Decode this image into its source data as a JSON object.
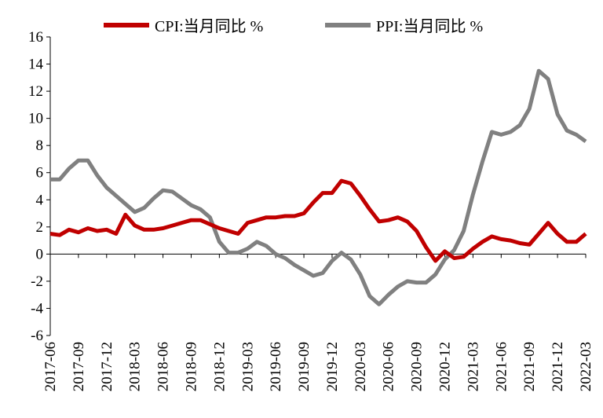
{
  "chart_data": {
    "type": "line",
    "title": "",
    "xlabel": "",
    "ylabel": "",
    "ylim": [
      -6,
      16
    ],
    "yticks": [
      16,
      14,
      12,
      10,
      8,
      6,
      4,
      2,
      0,
      -2,
      -4,
      -6
    ],
    "x": [
      "2017-06",
      "2017-07",
      "2017-08",
      "2017-09",
      "2017-10",
      "2017-11",
      "2017-12",
      "2018-01",
      "2018-02",
      "2018-03",
      "2018-04",
      "2018-05",
      "2018-06",
      "2018-07",
      "2018-08",
      "2018-09",
      "2018-10",
      "2018-11",
      "2018-12",
      "2019-01",
      "2019-02",
      "2019-03",
      "2019-04",
      "2019-05",
      "2019-06",
      "2019-07",
      "2019-08",
      "2019-09",
      "2019-10",
      "2019-11",
      "2019-12",
      "2020-01",
      "2020-02",
      "2020-03",
      "2020-04",
      "2020-05",
      "2020-06",
      "2020-07",
      "2020-08",
      "2020-09",
      "2020-10",
      "2020-11",
      "2020-12",
      "2021-01",
      "2021-02",
      "2021-03",
      "2021-04",
      "2021-05",
      "2021-06",
      "2021-07",
      "2021-08",
      "2021-09",
      "2021-10",
      "2021-11",
      "2021-12",
      "2022-01",
      "2022-02",
      "2022-03"
    ],
    "x_tick_labels": [
      "2017-06",
      "2017-09",
      "2017-12",
      "2018-03",
      "2018-06",
      "2018-09",
      "2018-12",
      "2019-03",
      "2019-06",
      "2019-09",
      "2019-12",
      "2020-03",
      "2020-06",
      "2020-09",
      "2020-12",
      "2021-03",
      "2021-06",
      "2021-09",
      "2021-12",
      "2022-03"
    ],
    "series": [
      {
        "name": "CPI:当月同比 %",
        "color": "#c00000",
        "values": [
          1.5,
          1.4,
          1.8,
          1.6,
          1.9,
          1.7,
          1.8,
          1.5,
          2.9,
          2.1,
          1.8,
          1.8,
          1.9,
          2.1,
          2.3,
          2.5,
          2.5,
          2.2,
          1.9,
          1.7,
          1.5,
          2.3,
          2.5,
          2.7,
          2.7,
          2.8,
          2.8,
          3.0,
          3.8,
          4.5,
          4.5,
          5.4,
          5.2,
          4.3,
          3.3,
          2.4,
          2.5,
          2.7,
          2.4,
          1.7,
          0.5,
          -0.5,
          0.2,
          -0.3,
          -0.2,
          0.4,
          0.9,
          1.3,
          1.1,
          1.0,
          0.8,
          0.7,
          1.5,
          2.3,
          1.5,
          0.9,
          0.9,
          1.5
        ]
      },
      {
        "name": "PPI:当月同比 %",
        "color": "#808080",
        "values": [
          5.5,
          5.5,
          6.3,
          6.9,
          6.9,
          5.8,
          4.9,
          4.3,
          3.7,
          3.1,
          3.4,
          4.1,
          4.7,
          4.6,
          4.1,
          3.6,
          3.3,
          2.7,
          0.9,
          0.1,
          0.1,
          0.4,
          0.9,
          0.6,
          0.0,
          -0.3,
          -0.8,
          -1.2,
          -1.6,
          -1.4,
          -0.5,
          0.1,
          -0.4,
          -1.5,
          -3.1,
          -3.7,
          -3.0,
          -2.4,
          -2.0,
          -2.1,
          -2.1,
          -1.5,
          -0.4,
          0.3,
          1.7,
          4.4,
          6.8,
          9.0,
          8.8,
          9.0,
          9.5,
          10.7,
          13.5,
          12.9,
          10.3,
          9.1,
          8.8,
          8.3
        ]
      }
    ],
    "legend": {
      "position": "top-center"
    }
  }
}
